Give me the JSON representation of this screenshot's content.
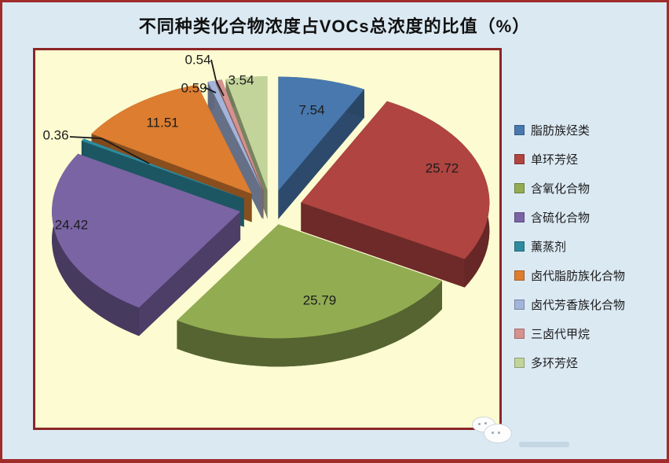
{
  "title": "不同种类化合物浓度占VOCs总浓度的比值（%）",
  "chart_data": {
    "type": "pie",
    "style": "3d-exploded",
    "title": "不同种类化合物浓度占VOCs总浓度的比值（%）",
    "value_unit": "%",
    "total": 100,
    "legend_position": "right",
    "labels_shown": true,
    "series": [
      {
        "name": "脂肪族烃类",
        "value": 7.54,
        "color": "#4878AE"
      },
      {
        "name": "单环芳烃",
        "value": 25.72,
        "color": "#AF4441"
      },
      {
        "name": "含氧化合物",
        "value": 25.79,
        "color": "#92AC52"
      },
      {
        "name": "含硫化合物",
        "value": 24.42,
        "color": "#7A64A4"
      },
      {
        "name": "薰蒸剂",
        "value": 0.36,
        "color": "#2E8B9F"
      },
      {
        "name": "卤代脂肪族化合物",
        "value": 11.51,
        "color": "#DC7D30"
      },
      {
        "name": "卤代芳香族化合物",
        "value": 0.59,
        "color": "#A3B4DA"
      },
      {
        "name": "三卤代甲烷",
        "value": 0.54,
        "color": "#D6928F"
      },
      {
        "name": "多环芳烃",
        "value": 3.54,
        "color": "#C2D49A"
      }
    ]
  },
  "colors": {
    "page_background": "#DBE9F3",
    "plot_background": "#FCFBD1",
    "plot_border": "#8B2727",
    "outer_border": "#A02C2C",
    "label_text": "#1C1C1C"
  }
}
